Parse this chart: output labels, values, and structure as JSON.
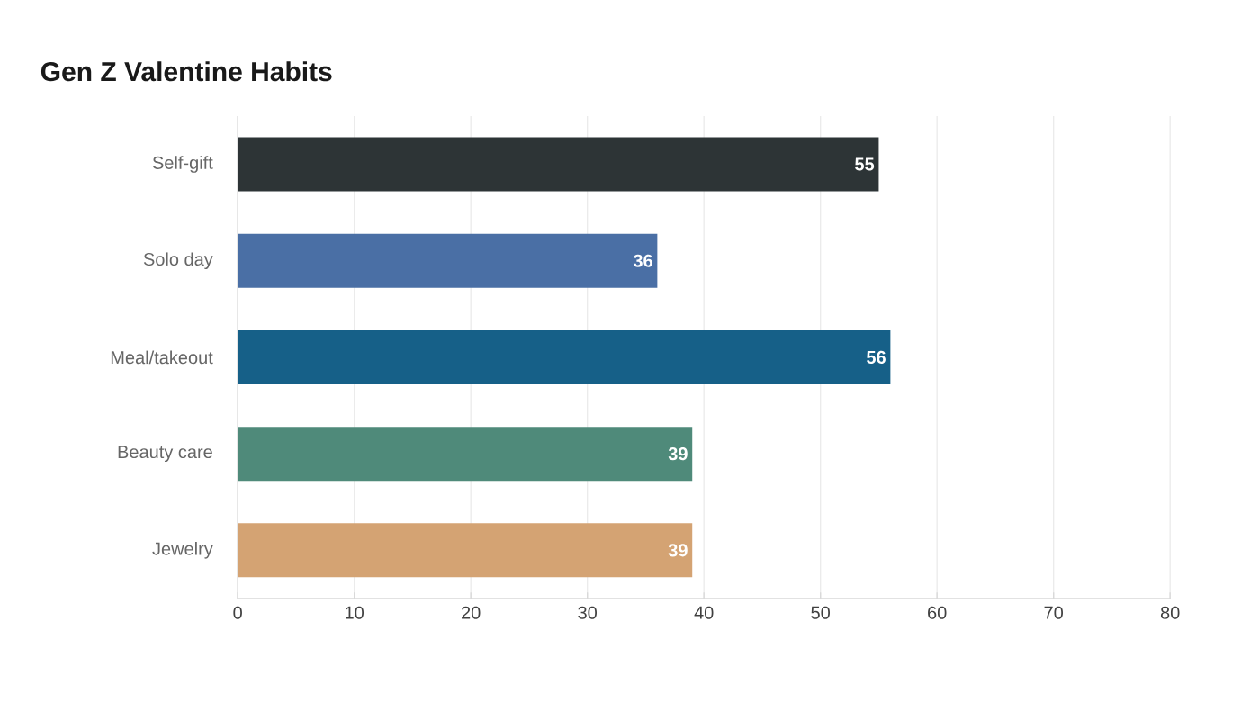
{
  "chart_data": {
    "type": "bar",
    "orientation": "horizontal",
    "title": "Gen Z Valentine Habits",
    "categories": [
      "Self-gift",
      "Solo day",
      "Meal/takeout",
      "Beauty care",
      "Jewelry"
    ],
    "values": [
      55,
      36,
      56,
      39,
      39
    ],
    "colors": [
      "#2d3436",
      "#4a6fa5",
      "#166088",
      "#4f8a7a",
      "#d4a373"
    ],
    "xlim": [
      0,
      80
    ],
    "xticks": [
      0,
      10,
      20,
      30,
      40,
      50,
      60,
      70,
      80
    ],
    "grid": "x",
    "data_labels": true
  }
}
